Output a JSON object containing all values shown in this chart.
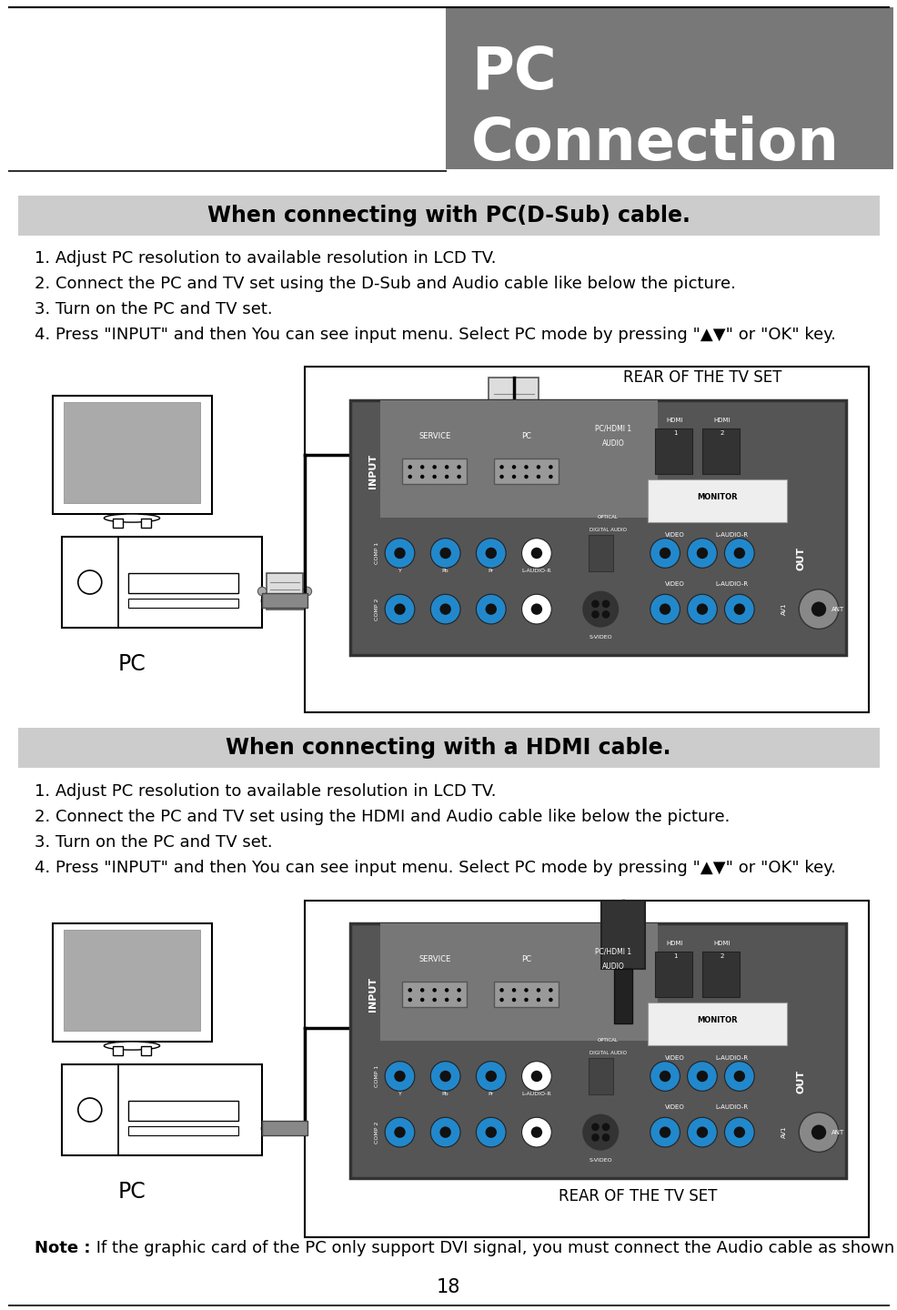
{
  "page_bg": "#ffffff",
  "header_bg": "#787878",
  "header_text_color": "#ffffff",
  "section1_bar_bg": "#cccccc",
  "section1_title": "When connecting with PC(D-Sub) cable.",
  "section2_bar_bg": "#cccccc",
  "section2_title": "When connecting with a HDMI cable.",
  "body_text_color": "#000000",
  "steps1": [
    "1. Adjust PC resolution to available resolution in LCD TV.",
    "2. Connect the PC and TV set using the D-Sub and Audio cable like below the picture.",
    "3. Turn on the PC and TV set.",
    "4. Press \"INPUT\" and then You can see input menu. Select PC mode by pressing \"▲▼\" or \"OK\" key."
  ],
  "steps2": [
    "1. Adjust PC resolution to available resolution in LCD TV.",
    "2. Connect the PC and TV set using the HDMI and Audio cable like below the picture.",
    "3. Turn on the PC and TV set.",
    "4. Press \"INPUT\" and then You can see input menu. Select PC mode by pressing \"▲▼\" or \"OK\" key."
  ],
  "note_bold": "Note :",
  "note_rest": " If the graphic card of the PC only support DVI signal, you must connect the Audio cable as shown above.",
  "page_number": "18",
  "rear_label": "REAR OF THE TV SET",
  "pc_label": "PC"
}
